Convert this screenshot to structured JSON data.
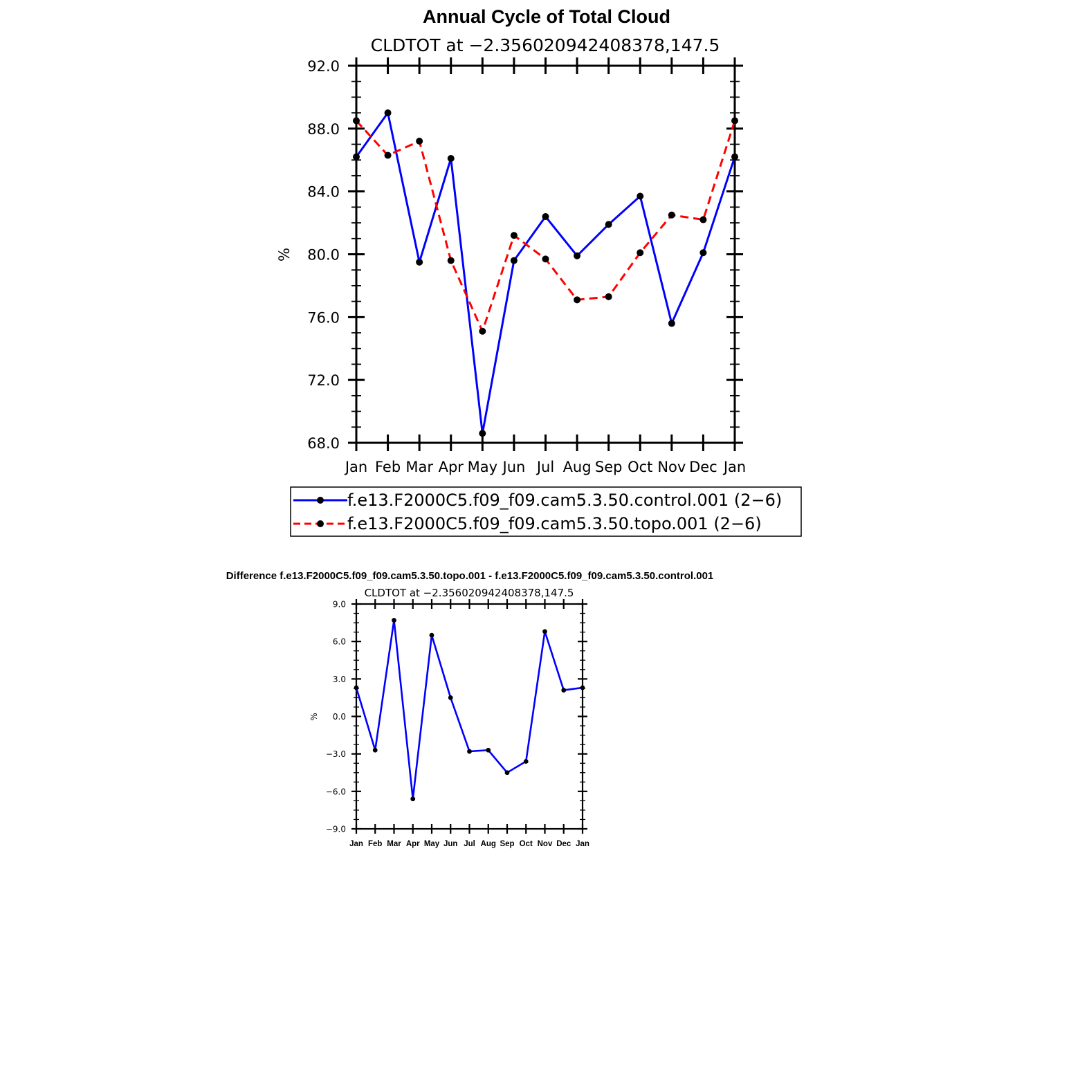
{
  "chart_data": [
    {
      "type": "line",
      "title": "Annual Cycle of Total Cloud",
      "subtitle": "CLDTOT at −2.356020942408378,147.5",
      "ylabel": "%",
      "xlabel": "",
      "categories": [
        "Jan",
        "Feb",
        "Mar",
        "Apr",
        "May",
        "Jun",
        "Jul",
        "Aug",
        "Sep",
        "Oct",
        "Nov",
        "Dec",
        "Jan"
      ],
      "ylim": [
        68.0,
        92.0
      ],
      "yticks": [
        "68.0",
        "72.0",
        "76.0",
        "80.0",
        "84.0",
        "88.0",
        "92.0"
      ],
      "series": [
        {
          "name": "f.e13.F2000C5.f09_f09.cam5.3.50.control.001 (2−6)",
          "color": "#0000ff",
          "dash": "solid",
          "values": [
            86.2,
            89.0,
            79.5,
            86.1,
            68.6,
            79.6,
            82.4,
            79.9,
            81.9,
            83.7,
            75.6,
            80.1,
            86.2
          ]
        },
        {
          "name": "f.e13.F2000C5.f09_f09.cam5.3.50.topo.001 (2−6)",
          "color": "#ff0000",
          "dash": "dashed",
          "values": [
            88.5,
            86.3,
            87.2,
            79.6,
            75.1,
            81.2,
            79.7,
            77.1,
            77.3,
            80.1,
            82.5,
            82.2,
            88.5
          ]
        }
      ],
      "legend_position": "bottom"
    },
    {
      "type": "line",
      "title": "Difference f.e13.F2000C5.f09_f09.cam5.3.50.topo.001 - f.e13.F2000C5.f09_f09.cam5.3.50.control.001",
      "subtitle": "CLDTOT at −2.356020942408378,147.5",
      "ylabel": "%",
      "xlabel": "",
      "categories": [
        "Jan",
        "Feb",
        "Mar",
        "Apr",
        "May",
        "Jun",
        "Jul",
        "Aug",
        "Sep",
        "Oct",
        "Nov",
        "Dec",
        "Jan"
      ],
      "ylim": [
        -9.0,
        9.0
      ],
      "yticks": [
        "−9.0",
        "−6.0",
        "−3.0",
        "0.0",
        "3.0",
        "6.0",
        "9.0"
      ],
      "series": [
        {
          "color": "#0000ff",
          "values": [
            2.3,
            -2.7,
            7.7,
            -6.6,
            6.5,
            1.5,
            -2.8,
            -2.7,
            -4.5,
            -3.6,
            6.8,
            2.1,
            2.3
          ]
        }
      ]
    }
  ]
}
